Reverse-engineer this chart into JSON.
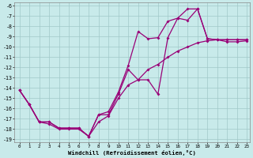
{
  "xlabel": "Windchill (Refroidissement éolien,°C)",
  "xlim": [
    -0.5,
    23.3
  ],
  "ylim": [
    -19.3,
    -5.7
  ],
  "yticks": [
    -19,
    -18,
    -17,
    -16,
    -15,
    -14,
    -13,
    -12,
    -11,
    -10,
    -9,
    -8,
    -7,
    -6
  ],
  "xticks": [
    0,
    1,
    2,
    3,
    4,
    5,
    6,
    7,
    8,
    9,
    10,
    11,
    12,
    13,
    14,
    15,
    16,
    17,
    18,
    19,
    20,
    21,
    22,
    23
  ],
  "bg_color": "#c8eaea",
  "grid_color": "#a0c8c8",
  "line_color": "#990077",
  "line1_x": [
    0,
    1,
    2,
    3,
    4,
    5,
    6,
    7,
    8,
    9,
    10,
    11,
    12,
    13,
    14,
    15,
    16,
    17,
    18,
    19,
    20,
    21,
    22,
    23
  ],
  "line1_y": [
    -14.2,
    -15.6,
    -17.3,
    -17.3,
    -17.9,
    -17.9,
    -17.9,
    -18.7,
    -16.6,
    -16.3,
    -14.4,
    -11.8,
    -8.5,
    -9.2,
    -9.1,
    -7.5,
    -7.2,
    -6.3,
    -6.3,
    -9.2,
    -9.3,
    -9.3,
    -9.3,
    -9.3
  ],
  "line2_x": [
    0,
    1,
    2,
    3,
    4,
    5,
    6,
    7,
    8,
    9,
    10,
    11,
    12,
    13,
    14,
    15,
    16,
    17,
    18,
    19,
    20,
    21,
    22,
    23
  ],
  "line2_y": [
    -14.2,
    -15.6,
    -17.3,
    -17.3,
    -17.9,
    -17.9,
    -17.9,
    -18.7,
    -16.6,
    -16.6,
    -14.6,
    -12.2,
    -13.2,
    -13.2,
    -14.6,
    -9.1,
    -7.2,
    -7.4,
    -6.3,
    -9.2,
    -9.3,
    -9.3,
    -9.3,
    -9.3
  ],
  "line3_x": [
    0,
    1,
    2,
    3,
    4,
    5,
    6,
    7,
    8,
    9,
    10,
    11,
    12,
    13,
    14,
    15,
    16,
    17,
    18,
    19,
    20,
    21,
    22,
    23
  ],
  "line3_y": [
    -14.2,
    -15.6,
    -17.3,
    -17.5,
    -18.0,
    -18.0,
    -18.0,
    -18.7,
    -17.3,
    -16.7,
    -15.0,
    -13.7,
    -13.2,
    -12.2,
    -11.7,
    -11.0,
    -10.4,
    -10.0,
    -9.6,
    -9.4,
    -9.3,
    -9.5,
    -9.5,
    -9.4
  ]
}
